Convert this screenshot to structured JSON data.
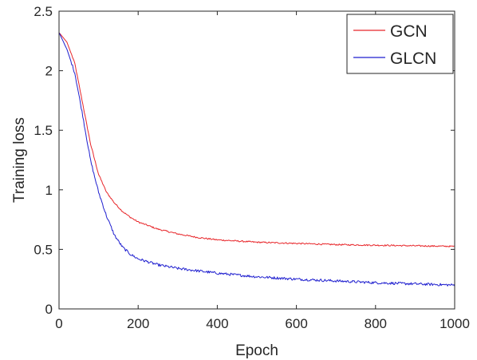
{
  "chart_data": {
    "type": "line",
    "xlabel": "Epoch",
    "ylabel": "Training loss",
    "xlim": [
      0,
      1000
    ],
    "ylim": [
      0,
      2.5
    ],
    "xticks": [
      0,
      200,
      400,
      600,
      800,
      1000
    ],
    "yticks": [
      0,
      0.5,
      1,
      1.5,
      2,
      2.5
    ],
    "xtick_labels": [
      "0",
      "200",
      "400",
      "600",
      "800",
      "1000"
    ],
    "ytick_labels": [
      "0",
      "0.5",
      "1",
      "1.5",
      "2",
      "2.5"
    ],
    "grid": false,
    "legend_position": "top-right",
    "series": [
      {
        "name": "GCN",
        "color": "#e8262a",
        "x": [
          0,
          20,
          40,
          60,
          80,
          100,
          120,
          140,
          160,
          180,
          200,
          250,
          300,
          350,
          400,
          450,
          500,
          600,
          700,
          800,
          900,
          1000
        ],
        "y": [
          2.32,
          2.24,
          2.06,
          1.72,
          1.38,
          1.13,
          0.98,
          0.89,
          0.82,
          0.77,
          0.73,
          0.67,
          0.63,
          0.6,
          0.58,
          0.57,
          0.56,
          0.55,
          0.54,
          0.535,
          0.53,
          0.525
        ]
      },
      {
        "name": "GLCN",
        "color": "#1f1fcf",
        "x": [
          0,
          20,
          40,
          60,
          80,
          100,
          120,
          140,
          160,
          180,
          200,
          250,
          300,
          350,
          400,
          450,
          500,
          600,
          700,
          800,
          900,
          1000
        ],
        "y": [
          2.32,
          2.18,
          1.98,
          1.62,
          1.24,
          0.98,
          0.78,
          0.62,
          0.52,
          0.46,
          0.42,
          0.37,
          0.34,
          0.32,
          0.3,
          0.285,
          0.27,
          0.25,
          0.235,
          0.22,
          0.21,
          0.2
        ]
      }
    ]
  }
}
